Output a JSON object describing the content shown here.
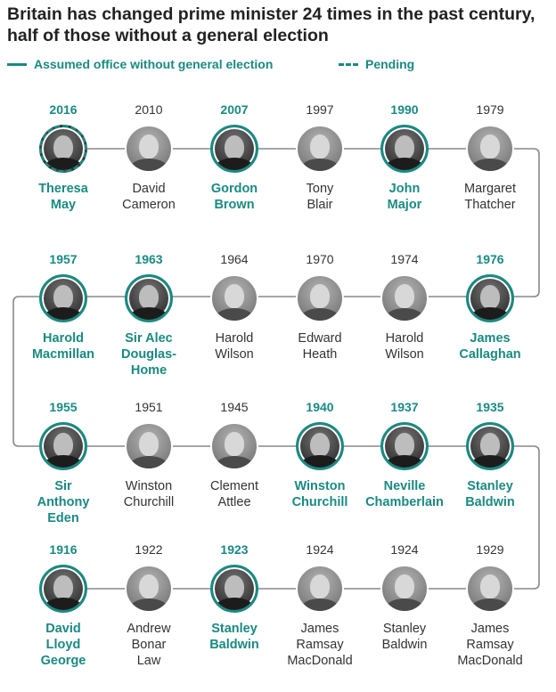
{
  "title": "Britain has changed prime minister 24 times in the past century, half of those without a general election",
  "legend": {
    "without_election": "Assumed office without general election",
    "pending": "Pending"
  },
  "colors": {
    "accent": "#1a8a82",
    "line": "#888888",
    "text": "#333333"
  },
  "rows": [
    [
      {
        "year": "2016",
        "name": [
          "Theresa",
          "May"
        ],
        "highlight": true,
        "pending": true
      },
      {
        "year": "2010",
        "name": [
          "David",
          "Cameron"
        ],
        "highlight": false
      },
      {
        "year": "2007",
        "name": [
          "Gordon",
          "Brown"
        ],
        "highlight": true
      },
      {
        "year": "1997",
        "name": [
          "Tony",
          "Blair"
        ],
        "highlight": false
      },
      {
        "year": "1990",
        "name": [
          "John",
          "Major"
        ],
        "highlight": true
      },
      {
        "year": "1979",
        "name": [
          "Margaret",
          "Thatcher"
        ],
        "highlight": false
      }
    ],
    [
      {
        "year": "1957",
        "name": [
          "Harold",
          "Macmillan"
        ],
        "highlight": true
      },
      {
        "year": "1963",
        "name": [
          "Sir Alec",
          "Douglas-",
          "Home"
        ],
        "highlight": true
      },
      {
        "year": "1964",
        "name": [
          "Harold",
          "Wilson"
        ],
        "highlight": false
      },
      {
        "year": "1970",
        "name": [
          "Edward",
          "Heath"
        ],
        "highlight": false
      },
      {
        "year": "1974",
        "name": [
          "Harold",
          "Wilson"
        ],
        "highlight": false
      },
      {
        "year": "1976",
        "name": [
          "James",
          "Callaghan"
        ],
        "highlight": true
      }
    ],
    [
      {
        "year": "1955",
        "name": [
          "Sir",
          "Anthony",
          "Eden"
        ],
        "highlight": true
      },
      {
        "year": "1951",
        "name": [
          "Winston",
          "Churchill"
        ],
        "highlight": false
      },
      {
        "year": "1945",
        "name": [
          "Clement",
          "Attlee"
        ],
        "highlight": false
      },
      {
        "year": "1940",
        "name": [
          "Winston",
          "Churchill"
        ],
        "highlight": true
      },
      {
        "year": "1937",
        "name": [
          "Neville",
          "Chamberlain"
        ],
        "highlight": true
      },
      {
        "year": "1935",
        "name": [
          "Stanley",
          "Baldwin"
        ],
        "highlight": true
      }
    ],
    [
      {
        "year": "1916",
        "name": [
          "David",
          "Lloyd",
          "George"
        ],
        "highlight": true
      },
      {
        "year": "1922",
        "name": [
          "Andrew",
          "Bonar",
          "Law"
        ],
        "highlight": false
      },
      {
        "year": "1923",
        "name": [
          "Stanley",
          "Baldwin"
        ],
        "highlight": true
      },
      {
        "year": "1924",
        "name": [
          "James",
          "Ramsay",
          "MacDonald"
        ],
        "highlight": false
      },
      {
        "year": "1924",
        "name": [
          "Stanley",
          "Baldwin"
        ],
        "highlight": false
      },
      {
        "year": "1929",
        "name": [
          "James",
          "Ramsay",
          "MacDonald"
        ],
        "highlight": false
      }
    ]
  ]
}
